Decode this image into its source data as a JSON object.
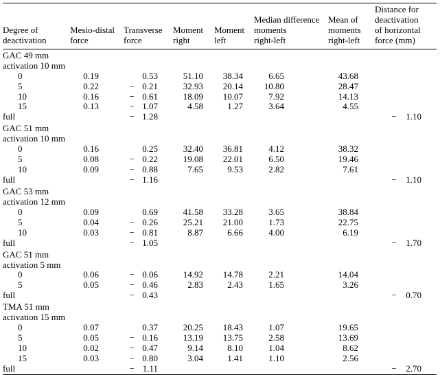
{
  "headers": {
    "c1": "Degree of\ndeactivation",
    "c2": "Mesio-distal\nforce",
    "c3": "Transverse\nforce",
    "c4": "Moment\nright",
    "c5": "Moment\nleft",
    "c6": "Median difference\nmoments\nright-left",
    "c7": "Mean of\nmoments\nright-left",
    "c8": "Distance for\ndeactivation\nof horizontal\nforce (mm)"
  },
  "groups": [
    {
      "title1": "GAC 49 mm",
      "title2": "activation 10 mm",
      "rows": [
        {
          "deg": "0",
          "md": "0.19",
          "tv": "0.53",
          "mr": "51.10",
          "ml": "38.34",
          "diff": "6.65",
          "mean": "43.68",
          "dist": ""
        },
        {
          "deg": "5",
          "md": "0.22",
          "tv": "-0.21",
          "mr": "32.93",
          "ml": "20.14",
          "diff": "10.80",
          "mean": "28.47",
          "dist": ""
        },
        {
          "deg": "10",
          "md": "0.16",
          "tv": "-0.61",
          "mr": "18.09",
          "ml": "10.07",
          "diff": "7.92",
          "mean": "14.13",
          "dist": ""
        },
        {
          "deg": "15",
          "md": "0.13",
          "tv": "-1.07",
          "mr": "4.58",
          "ml": "1.27",
          "diff": "3.64",
          "mean": "4.55",
          "dist": ""
        },
        {
          "deg": "full",
          "md": "",
          "tv": "-1.28",
          "mr": "",
          "ml": "",
          "diff": "",
          "mean": "",
          "dist": "-1.10"
        }
      ]
    },
    {
      "title1": "GAC 51 mm",
      "title2": "activation 10 mm",
      "rows": [
        {
          "deg": "0",
          "md": "0.16",
          "tv": "0.25",
          "mr": "32.40",
          "ml": "36.81",
          "diff": "4.12",
          "mean": "38.32",
          "dist": ""
        },
        {
          "deg": "5",
          "md": "0.08",
          "tv": "-0.22",
          "mr": "19.08",
          "ml": "22.01",
          "diff": "6.50",
          "mean": "19.46",
          "dist": ""
        },
        {
          "deg": "10",
          "md": "0.09",
          "tv": "-0.88",
          "mr": "7.65",
          "ml": "9.53",
          "diff": "2.82",
          "mean": "7.61",
          "dist": ""
        },
        {
          "deg": "full",
          "md": "",
          "tv": "-1.16",
          "mr": "",
          "ml": "",
          "diff": "",
          "mean": "",
          "dist": "-1.10"
        }
      ]
    },
    {
      "title1": "GAC 53 mm",
      "title2": "activation 12 mm",
      "rows": [
        {
          "deg": "0",
          "md": "0.09",
          "tv": "0.69",
          "mr": "41.58",
          "ml": "33.28",
          "diff": "3.65",
          "mean": "38.84",
          "dist": ""
        },
        {
          "deg": "5",
          "md": "0.04",
          "tv": "-0.26",
          "mr": "25.21",
          "ml": "21.00",
          "diff": "1.73",
          "mean": "22.75",
          "dist": ""
        },
        {
          "deg": "10",
          "md": "0.03",
          "tv": "-0.81",
          "mr": "8.87",
          "ml": "6.66",
          "diff": "4.00",
          "mean": "6.19",
          "dist": ""
        },
        {
          "deg": "full",
          "md": "",
          "tv": "-1.05",
          "mr": "",
          "ml": "",
          "diff": "",
          "mean": "",
          "dist": "-1.70"
        }
      ]
    },
    {
      "title1": "GAC 51 mm",
      "title2": "activation 5 mm",
      "rows": [
        {
          "deg": "0",
          "md": "0.06",
          "tv": "-0.06",
          "mr": "14.92",
          "ml": "14.78",
          "diff": "2.21",
          "mean": "14.04",
          "dist": ""
        },
        {
          "deg": "5",
          "md": "0.05",
          "tv": "-0.46",
          "mr": "2.83",
          "ml": "2.43",
          "diff": "1.65",
          "mean": "3.26",
          "dist": ""
        },
        {
          "deg": "full",
          "md": "",
          "tv": "-0.43",
          "mr": "",
          "ml": "",
          "diff": "",
          "mean": "",
          "dist": "-0.70"
        }
      ]
    },
    {
      "title1": "TMA 51 mm",
      "title2": "activation 15 mm",
      "rows": [
        {
          "deg": "0",
          "md": "0.07",
          "tv": "0.37",
          "mr": "20.25",
          "ml": "18.43",
          "diff": "1.07",
          "mean": "19.65",
          "dist": ""
        },
        {
          "deg": "5",
          "md": "0.05",
          "tv": "-0.16",
          "mr": "13.19",
          "ml": "13.75",
          "diff": "2.58",
          "mean": "13.69",
          "dist": ""
        },
        {
          "deg": "10",
          "md": "0.02",
          "tv": "-0.47",
          "mr": "9.14",
          "ml": "8.10",
          "diff": "1.04",
          "mean": "8.62",
          "dist": ""
        },
        {
          "deg": "15",
          "md": "0.03",
          "tv": "-0.80",
          "mr": "3.04",
          "ml": "1.41",
          "diff": "1.10",
          "mean": "2.56",
          "dist": ""
        },
        {
          "deg": "full",
          "md": "",
          "tv": "-1.11",
          "mr": "",
          "ml": "",
          "diff": "",
          "mean": "",
          "dist": "-2.70"
        }
      ]
    }
  ]
}
